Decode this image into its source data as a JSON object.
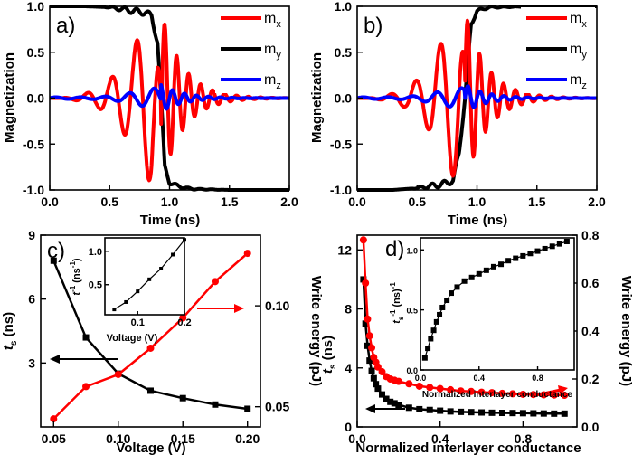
{
  "colors": {
    "mx": "#ff0000",
    "my": "#000000",
    "mz": "#0000ff",
    "ts": "#000000",
    "energy": "#ff0000"
  },
  "chart_data": [
    {
      "panel": "a)",
      "type": "line",
      "xlabel": "Time (ns)",
      "ylabel": "Magnetization",
      "xlim": [
        0,
        2.0
      ],
      "ylim": [
        -1.0,
        1.0
      ],
      "xticks": [
        "0.0",
        "0.5",
        "1.0",
        "1.5",
        "2.0"
      ],
      "yticks": [
        "1.0",
        "0.5",
        "0.0",
        "-0.5",
        "-1.0"
      ],
      "grid": false,
      "legend_position": "top-right",
      "switch_time": 0.93,
      "series": [
        {
          "name": "m",
          "sub": "x",
          "color": "#ff0000",
          "x": [
            0.0,
            0.1,
            0.2,
            0.3,
            0.4,
            0.5,
            0.6,
            0.65,
            0.7,
            0.75,
            0.8,
            0.85,
            0.9,
            0.93,
            0.96,
            1.0,
            1.05,
            1.1,
            1.2,
            1.3,
            1.5,
            2.0
          ],
          "y": [
            0.0,
            0.0,
            0.02,
            -0.05,
            0.1,
            -0.2,
            0.35,
            -0.45,
            0.55,
            -0.7,
            0.82,
            -0.95,
            0.55,
            0.0,
            -0.8,
            0.9,
            -0.5,
            0.35,
            -0.15,
            0.05,
            0.0,
            0.0
          ]
        },
        {
          "name": "m",
          "sub": "y",
          "color": "#000000",
          "x": [
            0.0,
            0.3,
            0.5,
            0.6,
            0.7,
            0.8,
            0.85,
            0.9,
            0.93,
            0.96,
            1.0,
            1.1,
            1.2,
            1.5,
            2.0
          ],
          "y": [
            1.0,
            1.0,
            0.99,
            0.97,
            0.95,
            0.93,
            0.9,
            0.6,
            0.0,
            -0.75,
            -0.92,
            -0.97,
            -0.99,
            -1.0,
            -1.0
          ]
        },
        {
          "name": "m",
          "sub": "z",
          "color": "#0000ff",
          "x": [
            0.0,
            0.2,
            0.4,
            0.6,
            0.7,
            0.8,
            0.85,
            0.9,
            0.93,
            0.96,
            1.0,
            1.05,
            1.1,
            1.2,
            1.3,
            1.5,
            2.0
          ],
          "y": [
            0.0,
            0.0,
            0.02,
            -0.04,
            0.05,
            -0.07,
            0.08,
            -0.1,
            -0.15,
            0.1,
            -0.08,
            0.06,
            -0.05,
            0.03,
            -0.01,
            0.0,
            0.0
          ]
        }
      ]
    },
    {
      "panel": "b)",
      "type": "line",
      "xlabel": "Time (ns)",
      "ylabel": "Magnetization",
      "xlim": [
        0,
        2.0
      ],
      "ylim": [
        -1.0,
        1.0
      ],
      "xticks": [
        "0.0",
        "0.5",
        "1.0",
        "1.5",
        "2.0"
      ],
      "yticks": [
        "1.0",
        "0.5",
        "0.0",
        "-0.5",
        "-1.0"
      ],
      "grid": false,
      "legend_position": "top-right",
      "switch_time": 0.9,
      "series": [
        {
          "name": "m",
          "sub": "x",
          "color": "#ff0000",
          "x": [
            0.0,
            0.1,
            0.2,
            0.3,
            0.4,
            0.5,
            0.6,
            0.65,
            0.7,
            0.75,
            0.8,
            0.85,
            0.9,
            0.95,
            1.0,
            1.05,
            1.1,
            1.2,
            1.3,
            1.5,
            2.0
          ],
          "y": [
            0.0,
            0.0,
            0.02,
            -0.05,
            0.1,
            -0.2,
            0.35,
            -0.5,
            0.6,
            -0.75,
            0.85,
            -0.95,
            0.4,
            -0.7,
            0.6,
            -0.4,
            0.25,
            -0.1,
            0.03,
            0.0,
            0.0
          ]
        },
        {
          "name": "m",
          "sub": "y",
          "color": "#000000",
          "x": [
            0.0,
            0.3,
            0.5,
            0.6,
            0.7,
            0.8,
            0.85,
            0.9,
            0.95,
            1.0,
            1.1,
            1.5,
            2.0
          ],
          "y": [
            -1.0,
            -1.0,
            -0.98,
            -0.96,
            -0.94,
            -0.9,
            -0.6,
            0.0,
            0.8,
            0.95,
            0.99,
            1.0,
            1.0
          ]
        },
        {
          "name": "m",
          "sub": "z",
          "color": "#0000ff",
          "x": [
            0.0,
            0.2,
            0.4,
            0.6,
            0.7,
            0.8,
            0.85,
            0.9,
            0.95,
            1.0,
            1.05,
            1.1,
            1.2,
            1.3,
            1.5,
            2.0
          ],
          "y": [
            0.0,
            0.0,
            0.02,
            -0.04,
            0.05,
            -0.07,
            0.08,
            -0.12,
            0.1,
            -0.08,
            0.06,
            -0.05,
            0.03,
            -0.01,
            0.0,
            0.0
          ]
        }
      ]
    },
    {
      "panel": "c)",
      "type": "line",
      "xlabel": "Voltage (V)",
      "ylabel_left": "t_s (ns)",
      "ylabel_right": "Write energy (pJ)",
      "xlim": [
        0.04,
        0.21
      ],
      "ylim_left": [
        0,
        9
      ],
      "ylim_right": [
        0.04,
        0.135
      ],
      "xticks": [
        0.05,
        0.1,
        0.15,
        0.2
      ],
      "xtick_labels": [
        "0.05",
        "0.10",
        "0.15",
        "0.20"
      ],
      "yticks_left": [
        3,
        6,
        9
      ],
      "ytick_labels_left": [
        "3",
        "6",
        "9"
      ],
      "yticks_right": [
        0.05,
        0.1
      ],
      "ytick_labels_right": [
        "0.05",
        "0.10"
      ],
      "series": [
        {
          "name": "t_s",
          "axis": "left",
          "marker": "square",
          "color": "#000000",
          "x": [
            0.05,
            0.075,
            0.1,
            0.125,
            0.15,
            0.175,
            0.2
          ],
          "y": [
            7.8,
            4.2,
            2.5,
            1.7,
            1.35,
            1.05,
            0.85
          ]
        },
        {
          "name": "Write energy",
          "axis": "right",
          "marker": "circle",
          "color": "#ff0000",
          "x": [
            0.05,
            0.075,
            0.1,
            0.125,
            0.15,
            0.175,
            0.2
          ],
          "y": [
            0.044,
            0.06,
            0.066,
            0.079,
            0.094,
            0.112,
            0.126
          ]
        }
      ],
      "inset": {
        "xlabel": "Voltage (V)",
        "ylabel": "t_s^-1 (ns^-1)",
        "xlim": [
          0.03,
          0.2
        ],
        "ylim": [
          0.05,
          1.2
        ],
        "xticks": [
          0.1,
          0.2
        ],
        "xtick_labels": [
          "0.1",
          "0.2"
        ],
        "yticks": [
          0.5,
          1.0
        ],
        "ytick_labels": [
          "0.5",
          "1.0"
        ],
        "x": [
          0.05,
          0.075,
          0.1,
          0.125,
          0.15,
          0.175,
          0.2
        ],
        "y": [
          0.13,
          0.24,
          0.4,
          0.58,
          0.74,
          0.95,
          1.17
        ]
      }
    },
    {
      "panel": "d)",
      "type": "scatter",
      "xlabel": "Normalized interlayer conductance",
      "ylabel_left": "t_s (ns)",
      "ylabel_right": "Write energy (pJ)",
      "xlim": [
        0,
        1.06
      ],
      "ylim_left": [
        0,
        13
      ],
      "ylim_right": [
        0,
        0.8
      ],
      "xticks": [
        0.0,
        0.4,
        0.8
      ],
      "xtick_labels": [
        "0.0",
        "0.4",
        "0.8"
      ],
      "yticks_left": [
        0,
        4,
        8,
        12
      ],
      "ytick_labels_left": [
        "0",
        "4",
        "8",
        "12"
      ],
      "yticks_right": [
        0.0,
        0.2,
        0.4,
        0.6,
        0.8
      ],
      "ytick_labels_right": [
        "0.0",
        "0.2",
        "0.4",
        "0.6",
        "0.8"
      ],
      "series": [
        {
          "name": "t_s",
          "axis": "left",
          "marker": "square",
          "color": "#000000",
          "x": [
            0.03,
            0.04,
            0.05,
            0.06,
            0.07,
            0.08,
            0.09,
            0.1,
            0.12,
            0.14,
            0.16,
            0.18,
            0.2,
            0.25,
            0.3,
            0.35,
            0.4,
            0.45,
            0.5,
            0.55,
            0.6,
            0.65,
            0.7,
            0.75,
            0.8,
            0.85,
            0.9,
            0.95,
            1.0
          ],
          "y": [
            10.0,
            7.0,
            5.5,
            4.5,
            3.8,
            3.3,
            2.9,
            2.6,
            2.2,
            1.9,
            1.7,
            1.6,
            1.5,
            1.3,
            1.2,
            1.15,
            1.1,
            1.05,
            1.02,
            1.0,
            0.98,
            0.96,
            0.95,
            0.94,
            0.93,
            0.92,
            0.91,
            0.9,
            0.9
          ]
        },
        {
          "name": "Write energy",
          "axis": "right",
          "marker": "circle",
          "color": "#ff0000",
          "x": [
            0.03,
            0.04,
            0.05,
            0.06,
            0.07,
            0.08,
            0.09,
            0.1,
            0.12,
            0.14,
            0.16,
            0.18,
            0.2,
            0.25,
            0.3,
            0.35,
            0.4,
            0.45,
            0.5,
            0.55,
            0.6,
            0.65,
            0.7,
            0.75,
            0.8,
            0.85,
            0.9,
            0.95,
            1.0
          ],
          "y": [
            0.78,
            0.6,
            0.45,
            0.38,
            0.33,
            0.29,
            0.27,
            0.25,
            0.23,
            0.21,
            0.2,
            0.195,
            0.19,
            0.18,
            0.17,
            0.165,
            0.16,
            0.155,
            0.15,
            0.148,
            0.145,
            0.143,
            0.14,
            0.138,
            0.136,
            0.135,
            0.134,
            0.133,
            0.132
          ]
        }
      ],
      "inset": {
        "xlabel": "Normalized interlayer conductance",
        "ylabel": "t_s^-1 (ns)^-1",
        "xlim": [
          0,
          1.05
        ],
        "ylim": [
          0,
          1.1
        ],
        "xticks": [
          0.0,
          0.4,
          0.8
        ],
        "xtick_labels": [
          "0.0",
          "0.4",
          "0.8"
        ],
        "yticks": [
          0.0,
          0.5,
          1.0
        ],
        "ytick_labels": [
          "0.0",
          "0.5",
          "1.0"
        ],
        "x": [
          0.03,
          0.05,
          0.07,
          0.09,
          0.11,
          0.13,
          0.15,
          0.18,
          0.21,
          0.25,
          0.3,
          0.35,
          0.4,
          0.45,
          0.5,
          0.55,
          0.6,
          0.65,
          0.7,
          0.75,
          0.8,
          0.85,
          0.9,
          0.95,
          1.0
        ],
        "y": [
          0.1,
          0.18,
          0.26,
          0.33,
          0.4,
          0.46,
          0.52,
          0.58,
          0.64,
          0.69,
          0.74,
          0.77,
          0.8,
          0.83,
          0.86,
          0.88,
          0.91,
          0.93,
          0.95,
          0.97,
          0.99,
          1.01,
          1.03,
          1.05,
          1.07
        ]
      }
    }
  ]
}
